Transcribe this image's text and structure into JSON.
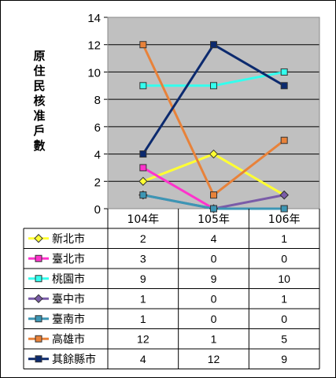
{
  "chart_data": {
    "type": "line",
    "ylabel": "原住民核准戶數",
    "categories": [
      "104年",
      "105年",
      "106年"
    ],
    "ylim": [
      0,
      14
    ],
    "yticks": [
      0,
      2,
      4,
      6,
      8,
      10,
      12,
      14
    ],
    "grid": true,
    "legend": "table-below",
    "series": [
      {
        "name": "新北市",
        "values": [
          2,
          4,
          1
        ],
        "color": "#ffff33",
        "marker": "diamond"
      },
      {
        "name": "臺北市",
        "values": [
          3,
          0,
          0
        ],
        "color": "#ff33cc",
        "marker": "square"
      },
      {
        "name": "桃園市",
        "values": [
          9,
          9,
          10
        ],
        "color": "#33ffee",
        "marker": "square"
      },
      {
        "name": "臺中市",
        "values": [
          1,
          0,
          1
        ],
        "color": "#7a5ca8",
        "marker": "diamond"
      },
      {
        "name": "臺南市",
        "values": [
          1,
          0,
          0
        ],
        "color": "#3c96b4",
        "marker": "square"
      },
      {
        "name": "高雄市",
        "values": [
          12,
          1,
          5
        ],
        "color": "#e8823a",
        "marker": "square"
      },
      {
        "name": "其餘縣市",
        "values": [
          4,
          12,
          9
        ],
        "color": "#0c2a6e",
        "marker": "square"
      }
    ]
  }
}
